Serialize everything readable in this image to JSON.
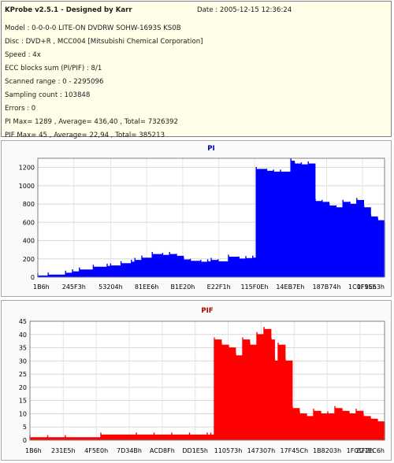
{
  "header": {
    "title": "KProbe v2.5.1 - Designed by Karr",
    "date": "Date : 2005-12-15 12:36:24",
    "lines": [
      "Model : 0-0-0-0 LITE-ON DVDRW SOHW-1693S KS0B",
      "Disc : DVD+R , MCC004 [Mitsubishi Chemical Corporation]",
      "Speed : 4x",
      "ECC blocks sum (PI/PIF) : 8/1",
      "Scanned range : 0 - 2295096",
      "Sampling count : 103848",
      "Errors : 0",
      "PI Max= 1289 , Average= 436,40 , Total= 7326392",
      "PIF Max= 45 , Average= 22,94 , Total= 385213"
    ]
  },
  "chart_data": [
    {
      "type": "area",
      "title": "PI",
      "color": "#0000ff",
      "ylim": [
        0,
        1300
      ],
      "yticks": [
        0,
        200,
        400,
        600,
        800,
        1000,
        1200
      ],
      "xlim": [
        0,
        1
      ],
      "xtick_labels": [
        "1B6h",
        "245F3h",
        "53204h",
        "81EE6h",
        "B1E20h",
        "E22F1h",
        "115F0Eh",
        "14EB7Eh",
        "187B74h",
        "1C0F15h",
        "1F9E63h"
      ],
      "xtick_positions": [
        0.0,
        0.104,
        0.21,
        0.314,
        0.418,
        0.522,
        0.625,
        0.728,
        0.833,
        0.936,
        1.0
      ],
      "x": [
        0.0,
        0.03,
        0.08,
        0.1,
        0.12,
        0.16,
        0.2,
        0.21,
        0.24,
        0.27,
        0.28,
        0.3,
        0.33,
        0.36,
        0.38,
        0.4,
        0.42,
        0.44,
        0.47,
        0.49,
        0.5,
        0.52,
        0.55,
        0.58,
        0.6,
        0.62,
        0.63,
        0.66,
        0.68,
        0.7,
        0.73,
        0.74,
        0.76,
        0.78,
        0.8,
        0.82,
        0.84,
        0.86,
        0.88,
        0.9,
        0.92,
        0.94,
        0.96,
        0.98,
        1.0
      ],
      "y": [
        15,
        25,
        45,
        60,
        80,
        110,
        120,
        125,
        150,
        165,
        185,
        210,
        250,
        240,
        250,
        230,
        190,
        175,
        165,
        170,
        185,
        170,
        220,
        200,
        205,
        210,
        1180,
        1160,
        1150,
        1150,
        1270,
        1240,
        1230,
        1240,
        830,
        820,
        780,
        760,
        820,
        800,
        840,
        760,
        660,
        620,
        580
      ]
    },
    {
      "type": "area",
      "title": "PIF",
      "color": "#ff0000",
      "ylim": [
        0,
        45
      ],
      "yticks": [
        0,
        5,
        10,
        15,
        20,
        25,
        30,
        35,
        40,
        45
      ],
      "xlim": [
        0,
        1
      ],
      "xtick_labels": [
        "1B6h",
        "231E5h",
        "4F5E0h",
        "7D34Bh",
        "ACD8Fh",
        "DD1E5h",
        "110573h",
        "147307h",
        "17F45Ch",
        "1B8203h",
        "1F01F2h",
        "227EC6h"
      ],
      "xtick_positions": [
        0.0,
        0.094,
        0.187,
        0.28,
        0.373,
        0.466,
        0.559,
        0.652,
        0.745,
        0.838,
        0.931,
        1.0
      ],
      "x": [
        0.0,
        0.05,
        0.1,
        0.2,
        0.3,
        0.35,
        0.4,
        0.45,
        0.5,
        0.51,
        0.52,
        0.54,
        0.56,
        0.58,
        0.6,
        0.62,
        0.64,
        0.66,
        0.68,
        0.69,
        0.7,
        0.72,
        0.74,
        0.76,
        0.78,
        0.8,
        0.82,
        0.84,
        0.86,
        0.88,
        0.9,
        0.92,
        0.94,
        0.96,
        0.98,
        1.0
      ],
      "y": [
        1,
        1,
        1,
        2,
        2,
        2,
        2,
        2,
        2,
        2,
        38,
        36,
        35,
        32,
        38,
        36,
        40,
        42,
        38,
        30,
        36,
        30,
        12,
        10,
        9,
        11,
        10,
        10,
        12,
        11,
        10,
        11,
        9,
        8,
        7,
        6
      ]
    }
  ]
}
